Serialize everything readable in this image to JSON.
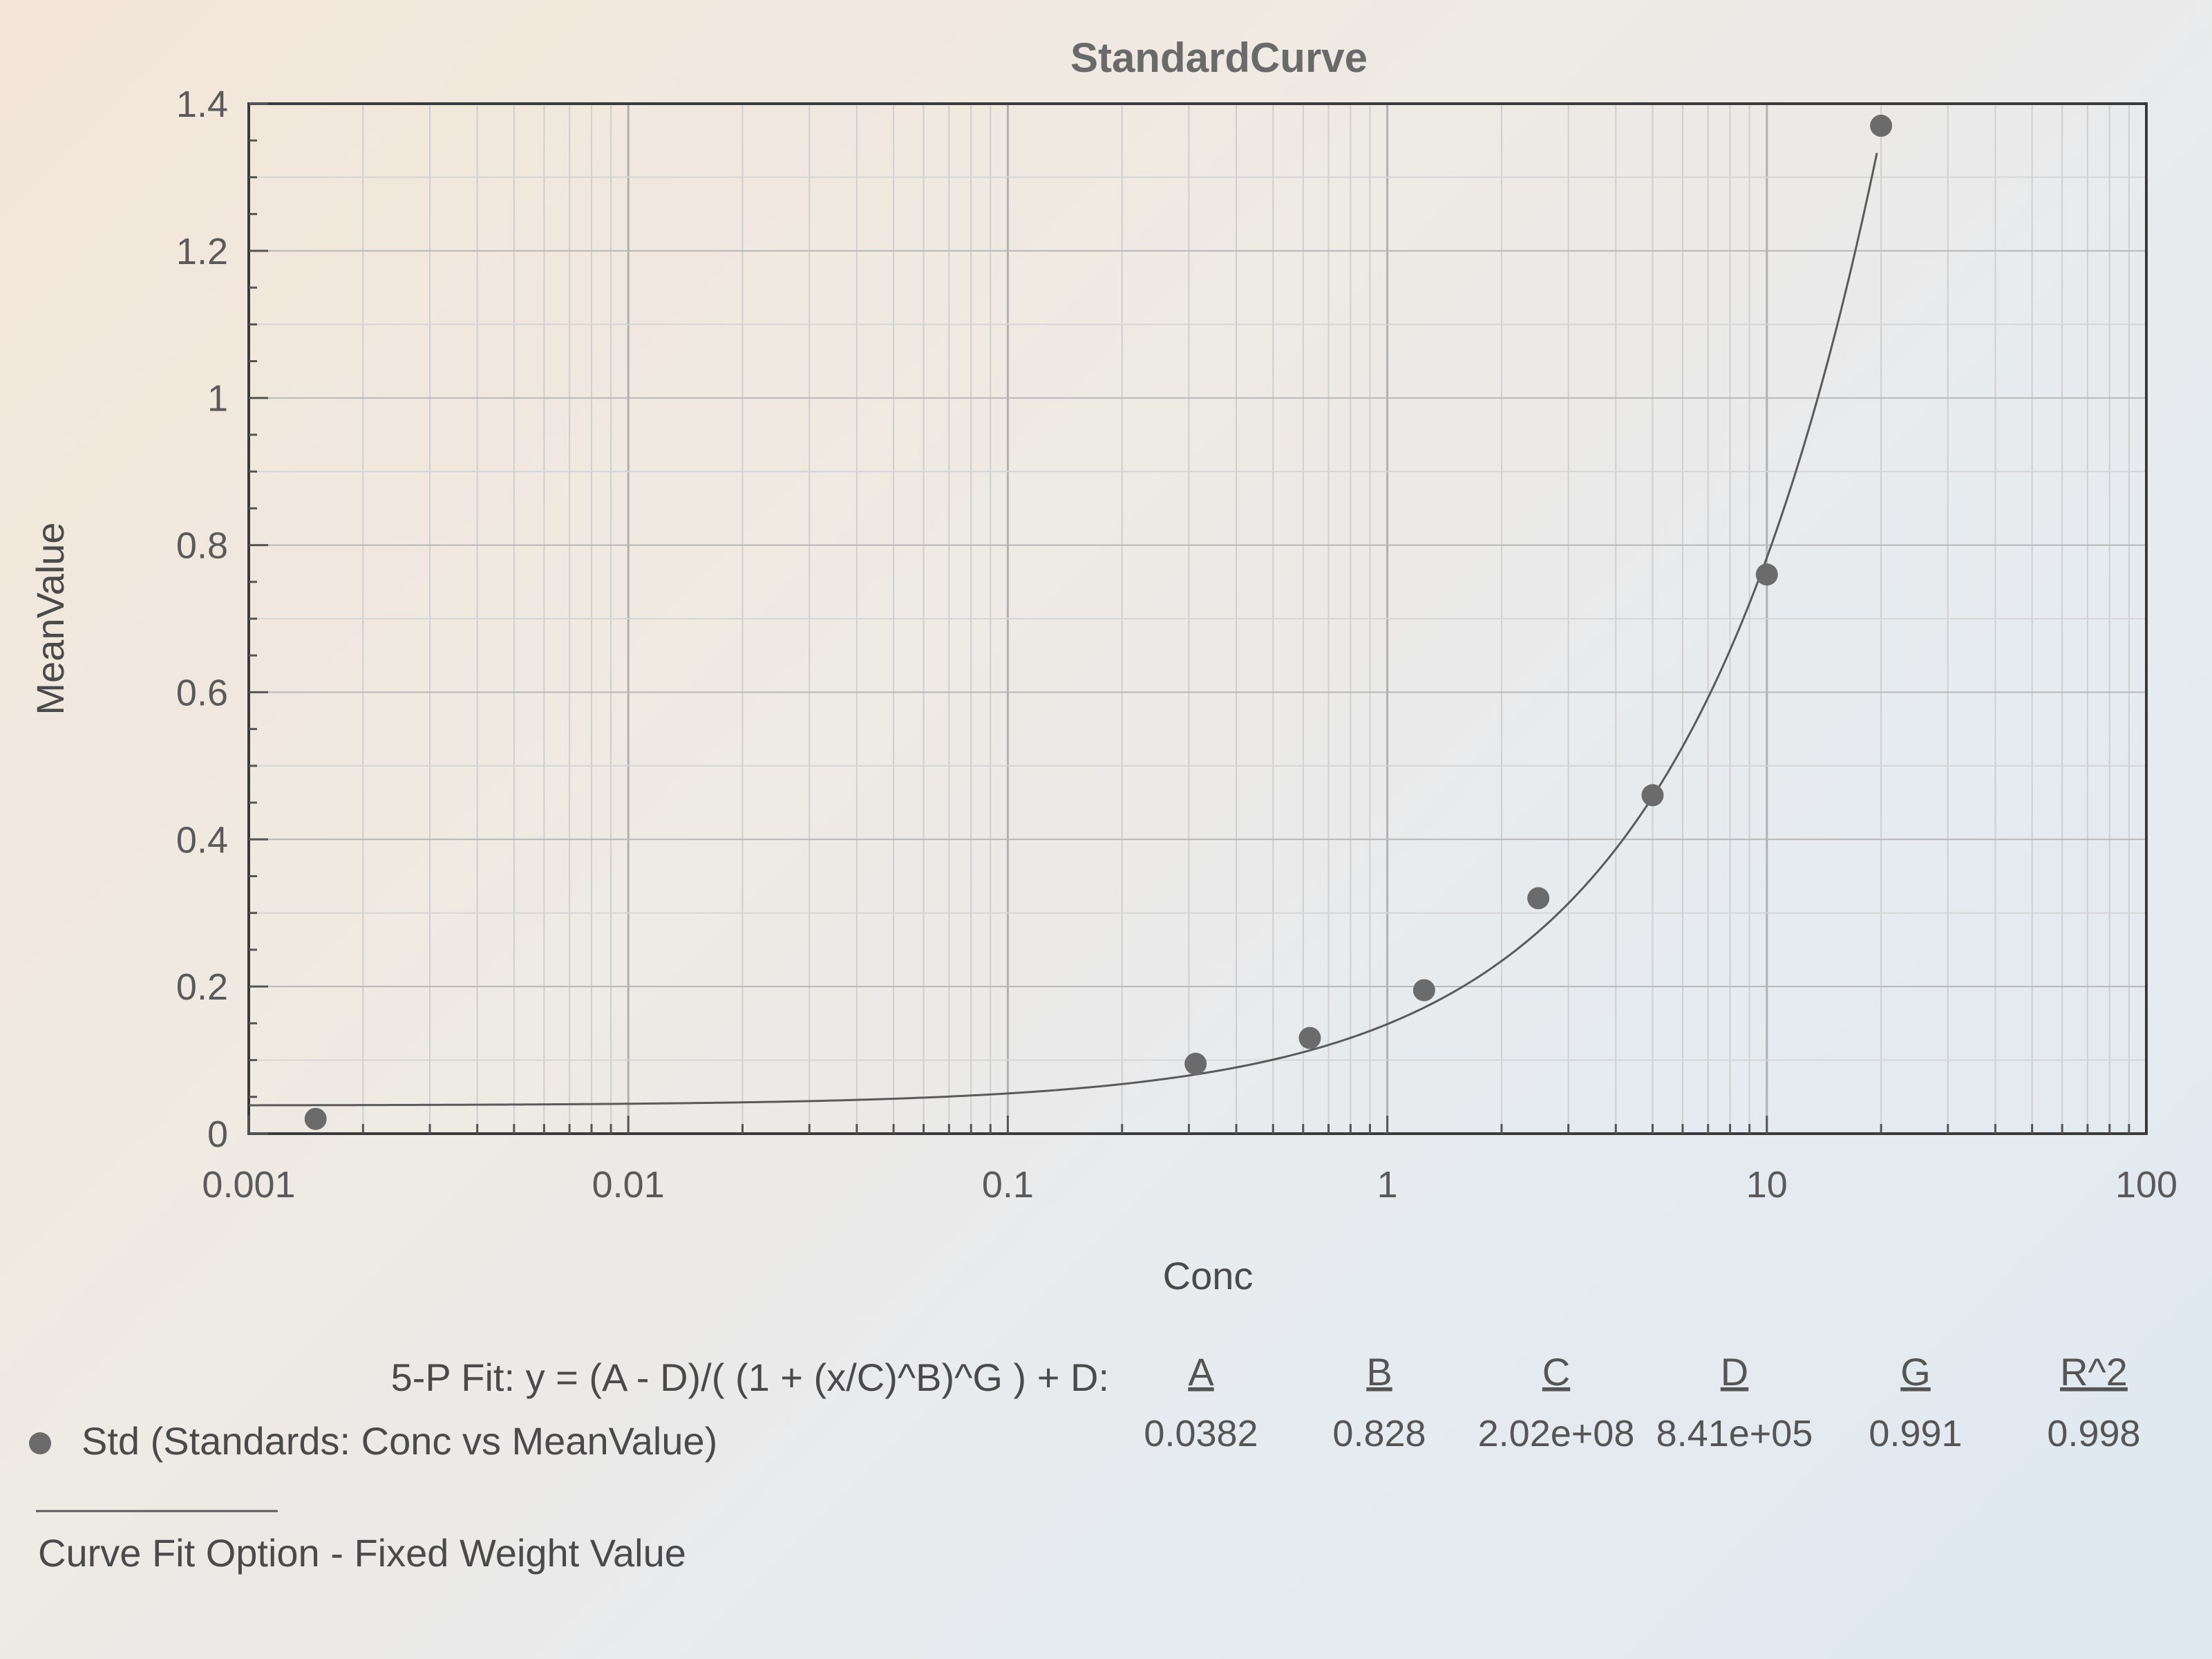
{
  "chart_data": {
    "type": "scatter",
    "title": "StandardCurve",
    "xlabel": "Conc",
    "ylabel": "MeanValue",
    "xscale": "log",
    "xlim": [
      0.001,
      100
    ],
    "ylim": [
      0,
      1.4
    ],
    "grid": true,
    "x_ticks": [
      "0.001",
      "0.01",
      "0.1",
      "1",
      "10",
      "100"
    ],
    "y_ticks": [
      "0",
      "0.2",
      "0.4",
      "0.6",
      "0.8",
      "1",
      "1.2",
      "1.4"
    ],
    "series": [
      {
        "name": "Std (Standards: Conc vs MeanValue)",
        "marker_color": "#6b6b6b",
        "x": [
          0.0015,
          0.3125,
          0.625,
          1.25,
          2.5,
          5,
          10,
          20
        ],
        "y": [
          0.02,
          0.095,
          0.13,
          0.195,
          0.32,
          0.46,
          0.76,
          1.37
        ]
      }
    ],
    "fit": {
      "label": "5-P Fit: y = (A - D)/( (1 + (x/C)^B)^G ) + D:",
      "params": [
        {
          "name": "A",
          "value": "0.0382",
          "num": 0.0382
        },
        {
          "name": "B",
          "value": "0.828",
          "num": 0.828
        },
        {
          "name": "C",
          "value": "2.02e+08",
          "num": 202000000
        },
        {
          "name": "D",
          "value": "8.41e+05",
          "num": 841000
        },
        {
          "name": "G",
          "value": "0.991",
          "num": 0.991
        },
        {
          "name": "R^2",
          "value": "0.998",
          "num": 0.998
        }
      ]
    },
    "legend_entry": "Std (Standards: Conc vs MeanValue)",
    "footer": "Curve Fit Option - Fixed Weight Value"
  }
}
